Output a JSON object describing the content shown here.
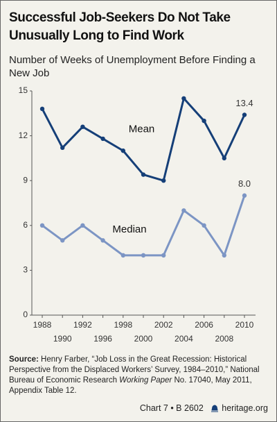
{
  "chart_data": {
    "type": "line",
    "title": "Successful Job-Seekers Do Not Take Unusually Long to Find Work",
    "subtitle": "Number of Weeks of Unemployment Before Finding a New Job",
    "categories": [
      "1988",
      "1990",
      "1992",
      "1996",
      "1998",
      "2000",
      "2002",
      "2004",
      "2006",
      "2008",
      "2010"
    ],
    "series": [
      {
        "name": "Mean",
        "color": "#153f78",
        "values": [
          13.8,
          11.2,
          12.6,
          11.8,
          11.0,
          9.4,
          9.0,
          14.5,
          13.0,
          10.5,
          13.4
        ],
        "value_labels": [
          null,
          null,
          null,
          null,
          null,
          null,
          null,
          null,
          null,
          null,
          "13.4"
        ]
      },
      {
        "name": "Median",
        "color": "#7c95c4",
        "values": [
          6,
          5,
          6,
          5,
          4,
          4,
          4,
          7,
          6,
          4,
          8
        ],
        "value_labels": [
          null,
          null,
          null,
          null,
          null,
          null,
          null,
          null,
          null,
          null,
          "8.0"
        ]
      }
    ],
    "ylim": [
      0,
      15
    ],
    "yticks": [
      0,
      3,
      6,
      9,
      12,
      15
    ],
    "grid": false,
    "source": {
      "label": "Source:",
      "text": "Henry Farber, “Job Loss in the Great Recession: Historical Perspective from the Displaced Workers’ Survey, 1984–2010,” National Bureau of Economic Research",
      "italic": "Working Paper",
      "rest": "No. 17040, May 2011, Appendix Table 12."
    },
    "footer": {
      "chart": "Chart 7 • B 2602",
      "site": "heritage.org"
    }
  }
}
